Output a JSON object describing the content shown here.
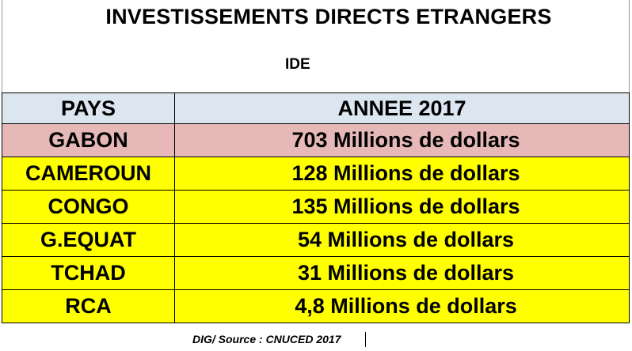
{
  "title": "INVESTISSEMENTS DIRECTS ETRANGERS",
  "subtitle": "IDE",
  "table": {
    "headers": [
      "PAYS",
      "ANNEE 2017"
    ],
    "rows": [
      {
        "country": "GABON",
        "value": "703 Millions de dollars",
        "highlight": true
      },
      {
        "country": "CAMEROUN",
        "value": "128 Millions de dollars",
        "highlight": false
      },
      {
        "country": "CONGO",
        "value": "135 Millions de dollars",
        "highlight": false
      },
      {
        "country": "G.EQUAT",
        "value": "54 Millions de dollars",
        "highlight": false
      },
      {
        "country": "TCHAD",
        "value": "31 Millions de dollars",
        "highlight": false
      },
      {
        "country": "RCA",
        "value": "4,8 Millions de dollars",
        "highlight": false
      }
    ]
  },
  "source": "DIG/ Source : CNUCED 2017",
  "colors": {
    "header_bg": "#dce6f1",
    "highlight_bg": "#e6b8b7",
    "row_bg": "#ffff00"
  }
}
